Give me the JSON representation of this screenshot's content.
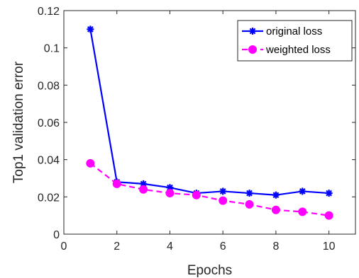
{
  "chart_data": {
    "type": "line",
    "title": "",
    "xlabel": "Epochs",
    "ylabel": "Top1 validation error",
    "xlim": [
      0,
      11
    ],
    "ylim": [
      0,
      0.12
    ],
    "xticks": [
      0,
      2,
      4,
      6,
      8,
      10
    ],
    "yticks": [
      0,
      0.02,
      0.04,
      0.06,
      0.08,
      0.1,
      0.12
    ],
    "xtick_labels": [
      "0",
      "2",
      "4",
      "6",
      "8",
      "10"
    ],
    "ytick_labels": [
      "0",
      "0.02",
      "0.04",
      "0.06",
      "0.08",
      "0.1",
      "0.12"
    ],
    "grid": false,
    "legend_position": "top-right",
    "series": [
      {
        "name": "original loss",
        "color": "#0000ff",
        "line_style": "solid",
        "marker": "asterisk",
        "x": [
          1,
          2,
          3,
          4,
          5,
          6,
          7,
          8,
          9,
          10
        ],
        "y": [
          0.11,
          0.028,
          0.027,
          0.025,
          0.022,
          0.023,
          0.022,
          0.021,
          0.023,
          0.022
        ]
      },
      {
        "name": "weighted loss",
        "color": "#ff00ff",
        "line_style": "dashed",
        "marker": "circle",
        "x": [
          1,
          2,
          3,
          4,
          5,
          6,
          7,
          8,
          9,
          10
        ],
        "y": [
          0.038,
          0.027,
          0.024,
          0.022,
          0.021,
          0.018,
          0.016,
          0.013,
          0.012,
          0.01
        ]
      }
    ]
  }
}
